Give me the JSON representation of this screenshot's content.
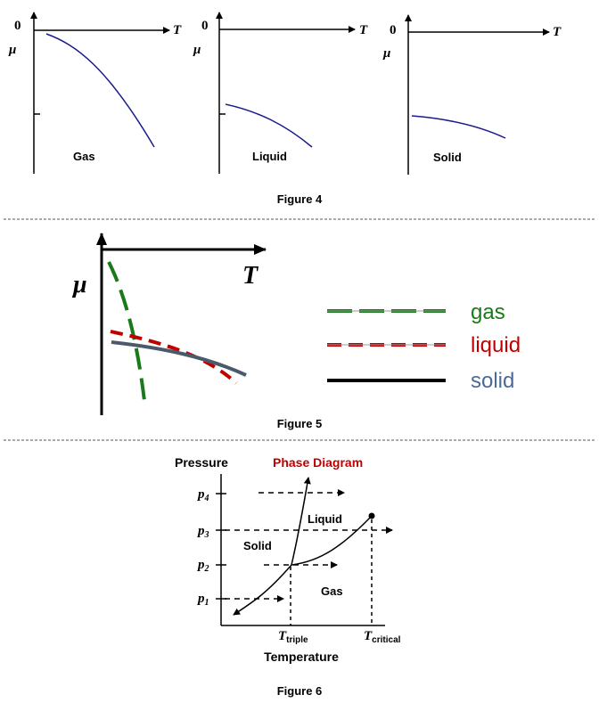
{
  "figure4": {
    "caption": "Figure 4",
    "panels": [
      {
        "zero": "0",
        "x_axis": "T",
        "y_axis": "μ",
        "label": "Gas"
      },
      {
        "zero": "0",
        "x_axis": "T",
        "y_axis": "μ",
        "label": "Liquid"
      },
      {
        "zero": "0",
        "x_axis": "T",
        "y_axis": "μ",
        "label": "Solid"
      }
    ]
  },
  "figure5": {
    "caption": "Figure 5",
    "x_axis": "T",
    "y_axis": "μ",
    "legend": [
      {
        "label": "gas",
        "color": "#1a7a1a",
        "style": "long-dash"
      },
      {
        "label": "liquid",
        "color": "#c00000",
        "style": "dash"
      },
      {
        "label": "solid",
        "color": "#4a6a9a",
        "style": "solid"
      }
    ]
  },
  "figure6": {
    "caption": "Figure 6",
    "y_axis": "Pressure",
    "title": "Phase Diagram",
    "title_color": "#c00000",
    "x_axis": "Temperature",
    "pressure_levels": [
      {
        "sym": "p",
        "sub": "4"
      },
      {
        "sym": "p",
        "sub": "3"
      },
      {
        "sym": "p",
        "sub": "2"
      },
      {
        "sym": "p",
        "sub": "1"
      }
    ],
    "regions": {
      "solid": "Solid",
      "liquid": "Liquid",
      "gas": "Gas"
    },
    "t_triple": {
      "sym": "T",
      "sub": "triple"
    },
    "t_critical": {
      "sym": "T",
      "sub": "critical"
    }
  },
  "colors": {
    "blue_curve": "#1a1a8c",
    "separator": "#555555"
  }
}
